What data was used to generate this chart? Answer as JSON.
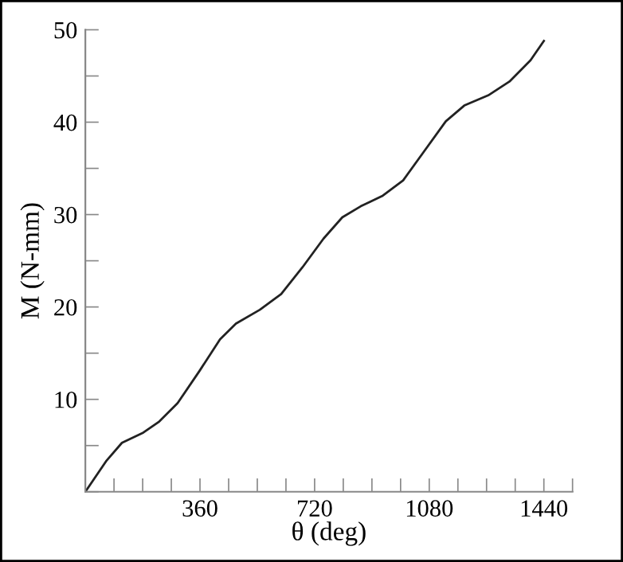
{
  "chart_data": {
    "type": "line",
    "xlabel": "θ (deg)",
    "ylabel": "M (N-mm)",
    "x": [
      0,
      65,
      115,
      182,
      232,
      290,
      357,
      423,
      473,
      548,
      615,
      682,
      748,
      807,
      865,
      932,
      998,
      1065,
      1132,
      1190,
      1265,
      1332,
      1398,
      1440
    ],
    "series": [
      {
        "color": "#222222",
        "values": [
          0,
          3.3,
          5.3,
          6.4,
          7.6,
          9.6,
          13.0,
          16.5,
          18.2,
          19.7,
          21.4,
          24.3,
          27.4,
          29.7,
          30.9,
          32.0,
          33.7,
          36.9,
          40.1,
          41.8,
          42.9,
          44.4,
          46.7,
          48.8
        ]
      }
    ],
    "xlim": [
      0,
      1530
    ],
    "xticks": [
      {
        "value": 0,
        "label": null
      },
      {
        "value": 90,
        "label": null
      },
      {
        "value": 180,
        "label": null
      },
      {
        "value": 270,
        "label": null
      },
      360,
      {
        "value": 450,
        "label": null
      },
      {
        "value": 540,
        "label": null
      },
      {
        "value": 630,
        "label": null
      },
      720,
      {
        "value": 810,
        "label": null
      },
      {
        "value": 900,
        "label": null
      },
      {
        "value": 990,
        "label": null
      },
      1080,
      {
        "value": 1170,
        "label": null
      },
      {
        "value": 1260,
        "label": null
      },
      {
        "value": 1350,
        "label": null
      },
      1440,
      {
        "value": 1530,
        "label": null
      }
    ],
    "ylim": [
      0,
      50
    ],
    "yticks": [
      {
        "value": 0,
        "label": null
      },
      {
        "value": 5,
        "label": null
      },
      10,
      {
        "value": 15,
        "label": null
      },
      20,
      {
        "value": 25,
        "label": null
      },
      30,
      {
        "value": 35,
        "label": null
      },
      40,
      {
        "value": 45,
        "label": null
      },
      50
    ],
    "grid": false,
    "legend": false,
    "marker": "none",
    "line_style": "solid"
  }
}
